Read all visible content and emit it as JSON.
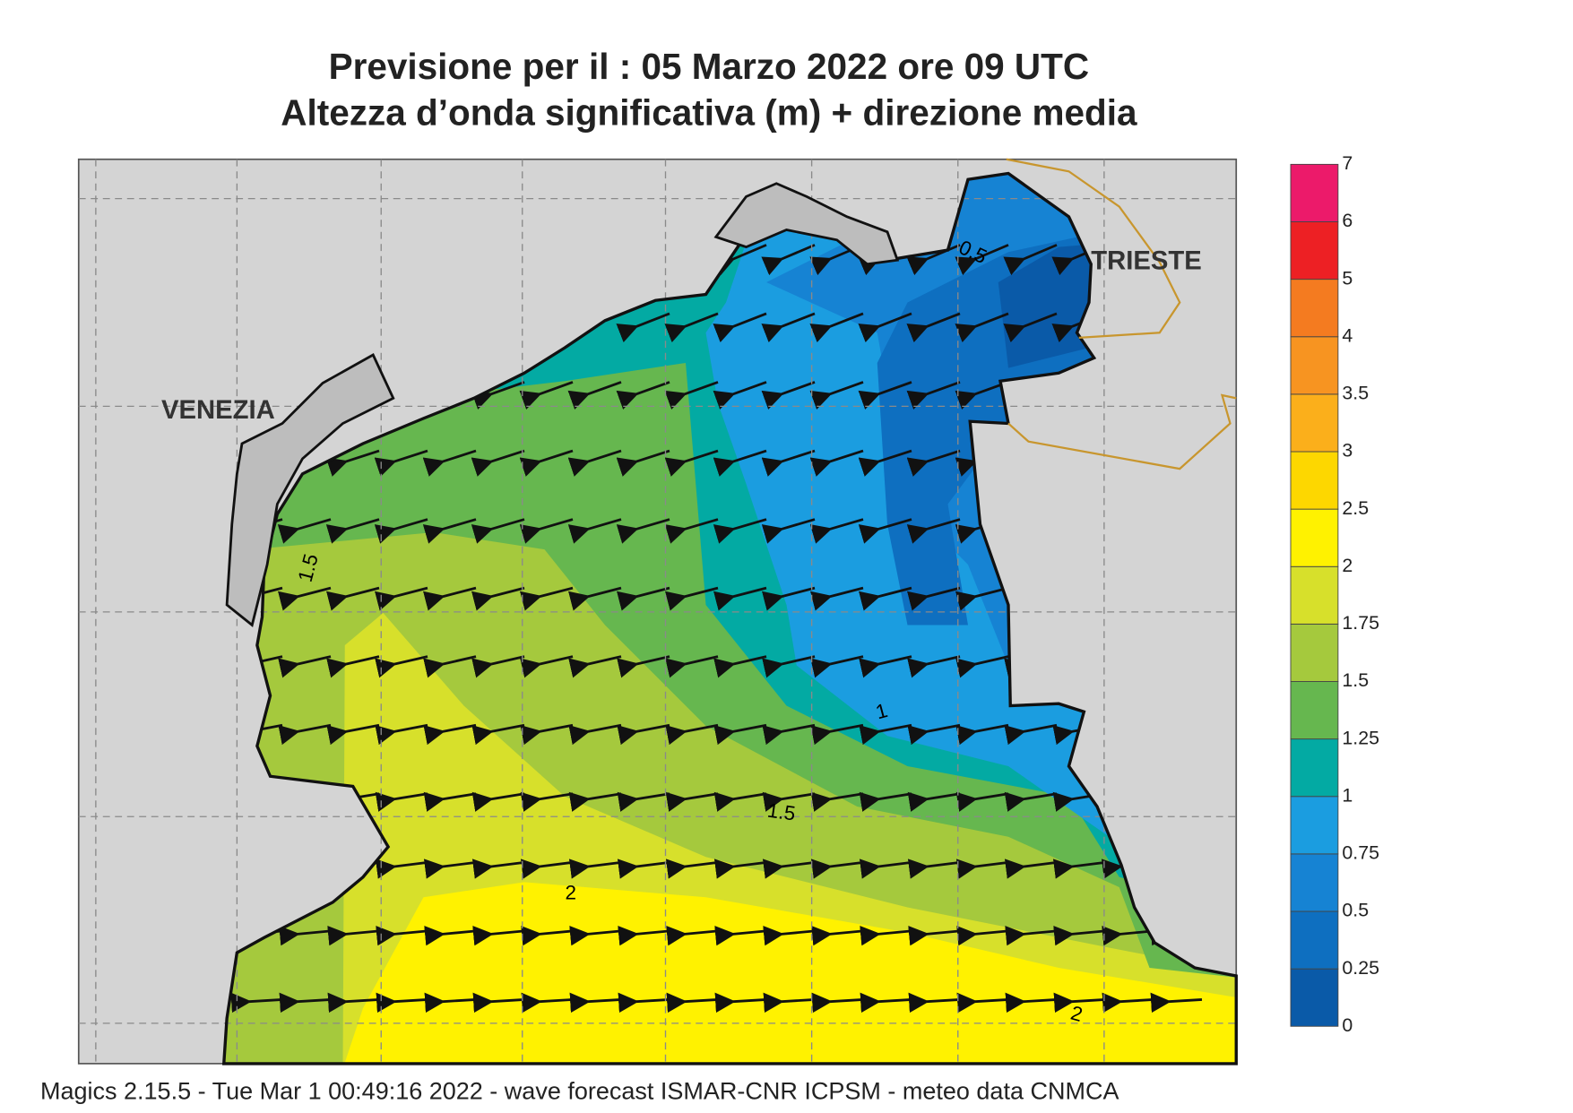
{
  "header": {
    "line1": "Previsione per il  :  05   Marzo   2022   ore 09 UTC",
    "line2": "Altezza d’onda significativa (m) + direzione media"
  },
  "legend": {
    "levels": [
      0,
      0.25,
      0.5,
      0.75,
      1,
      1.25,
      1.5,
      1.75,
      2,
      2.5,
      3,
      3.5,
      4,
      5,
      6,
      7
    ],
    "colors": [
      "#0a5aa8",
      "#0e6fc0",
      "#1683d3",
      "#1b9de0",
      "#03aaa3",
      "#66b74f",
      "#a5c93d",
      "#d7e02b",
      "#fff200",
      "#fdd700",
      "#fbaf1b",
      "#f79421",
      "#f47b20",
      "#ed2024",
      "#ec1a6a"
    ]
  },
  "places": [
    "VENEZIA",
    "TRIESTE"
  ],
  "contour_labels": [
    "0.5",
    "1",
    "1.5",
    "1.5",
    "2",
    "2"
  ],
  "footer": "Magics 2.15.5 - Tue Mar  1 00:49:16 2022 - wave forecast  ISMAR-CNR  ICPSM - meteo data   CNMCA"
}
